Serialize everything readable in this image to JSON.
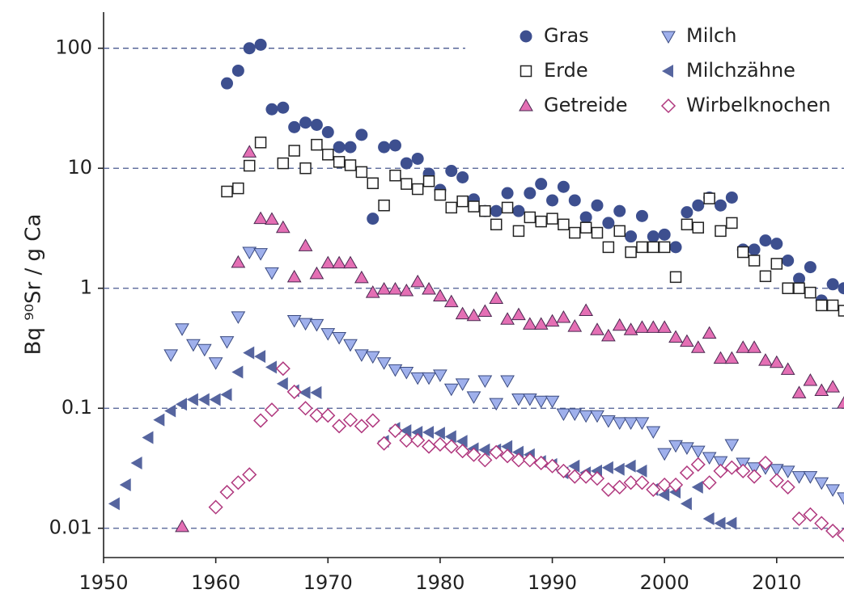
{
  "chart_data": {
    "type": "scatter",
    "ylabel": "Bq ⁹⁰Sr / g Ca",
    "log_y": true,
    "grid": true,
    "legend": "upper right",
    "xlim": [
      1950,
      2016
    ],
    "xticks": [
      1950,
      1960,
      1970,
      1980,
      1990,
      2000,
      2010
    ],
    "ylim": [
      0.0057,
      200
    ],
    "yticks": [
      100,
      10,
      1,
      0.1,
      0.01
    ],
    "series": [
      {
        "name": "Gras",
        "marker": "circle",
        "color": "#3d4f8f",
        "filled": true,
        "x": [
          1961,
          1962,
          1963,
          1964,
          1965,
          1966,
          1967,
          1968,
          1969,
          1970,
          1971,
          1972,
          1973,
          1974,
          1975,
          1976,
          1977,
          1978,
          1979,
          1980,
          1981,
          1982,
          1983,
          1984,
          1985,
          1986,
          1987,
          1988,
          1989,
          1990,
          1991,
          1992,
          1993,
          1994,
          1995,
          1996,
          1997,
          1998,
          1999,
          2000,
          2001,
          2002,
          2003,
          2004,
          2005,
          2006,
          2007,
          2008,
          2009,
          2010,
          2011,
          2012,
          2013,
          2014,
          2015,
          2016
        ],
        "values": [
          51,
          65,
          100,
          107,
          31,
          32,
          22,
          24,
          23,
          20,
          15,
          15,
          19,
          3.8,
          15,
          15.5,
          11,
          12,
          9,
          6.6,
          9.5,
          8.4,
          5.5,
          4.4,
          4.4,
          6.2,
          4.4,
          6.2,
          7.4,
          5.4,
          7,
          5.4,
          3.9,
          4.9,
          3.5,
          4.4,
          2.7,
          4,
          2.7,
          2.8,
          2.2,
          4.3,
          4.9,
          5.7,
          4.9,
          5.7,
          2.1,
          2.1,
          2.5,
          2.35,
          1.7,
          1.2,
          1.5,
          0.79,
          1.08,
          1.0
        ]
      },
      {
        "name": "Erde",
        "marker": "square",
        "color": "#222222",
        "filled": false,
        "x": [
          1961,
          1962,
          1963,
          1964,
          1966,
          1967,
          1968,
          1969,
          1970,
          1971,
          1972,
          1973,
          1974,
          1975,
          1976,
          1977,
          1978,
          1979,
          1980,
          1981,
          1982,
          1983,
          1984,
          1985,
          1986,
          1987,
          1988,
          1989,
          1990,
          1991,
          1992,
          1993,
          1994,
          1995,
          1996,
          1997,
          1998,
          1999,
          2000,
          2001,
          2002,
          2003,
          2004,
          2005,
          2006,
          2007,
          2008,
          2009,
          2010,
          2011,
          2012,
          2013,
          2014,
          2015,
          2016
        ],
        "values": [
          6.4,
          6.8,
          10.5,
          16.4,
          11,
          14,
          10,
          15.7,
          13,
          11.3,
          10.6,
          9.3,
          7.5,
          4.9,
          8.7,
          7.4,
          6.7,
          7.8,
          6,
          4.7,
          5.3,
          4.8,
          4.4,
          3.4,
          4.7,
          3.0,
          3.9,
          3.6,
          3.8,
          3.4,
          2.9,
          3.2,
          2.9,
          2.2,
          3.0,
          2.0,
          2.2,
          2.2,
          2.2,
          1.24,
          3.4,
          3.2,
          5.6,
          3.0,
          3.5,
          2.0,
          1.7,
          1.26,
          1.6,
          1.0,
          1.0,
          0.92,
          0.72,
          0.72,
          0.65
        ]
      },
      {
        "name": "Getreide",
        "marker": "triangle-up",
        "color": "#e46fb4",
        "filled": true,
        "x": [
          1957,
          1962,
          1963,
          1964,
          1965,
          1966,
          1967,
          1968,
          1969,
          1970,
          1971,
          1972,
          1973,
          1974,
          1975,
          1976,
          1977,
          1978,
          1979,
          1980,
          1981,
          1982,
          1983,
          1984,
          1985,
          1986,
          1987,
          1988,
          1989,
          1990,
          1991,
          1992,
          1993,
          1994,
          1995,
          1996,
          1997,
          1998,
          1999,
          2000,
          2001,
          2002,
          2003,
          2004,
          2005,
          2006,
          2007,
          2008,
          2009,
          2010,
          2011,
          2012,
          2013,
          2014,
          2015,
          2016
        ],
        "values": [
          0.0103,
          1.64,
          13.6,
          3.8,
          3.75,
          3.2,
          1.24,
          2.25,
          1.32,
          1.62,
          1.62,
          1.62,
          1.22,
          0.92,
          0.98,
          0.98,
          0.95,
          1.13,
          0.98,
          0.86,
          0.77,
          0.61,
          0.59,
          0.64,
          0.82,
          0.55,
          0.6,
          0.5,
          0.5,
          0.53,
          0.57,
          0.48,
          0.65,
          0.45,
          0.4,
          0.49,
          0.45,
          0.47,
          0.47,
          0.47,
          0.39,
          0.36,
          0.32,
          0.42,
          0.26,
          0.26,
          0.32,
          0.32,
          0.25,
          0.24,
          0.21,
          0.134,
          0.17,
          0.14,
          0.15,
          0.11
        ]
      },
      {
        "name": "Milch",
        "marker": "triangle-down",
        "color": "#9fb0ec",
        "filled": true,
        "x": [
          1956,
          1957,
          1958,
          1959,
          1960,
          1961,
          1962,
          1963,
          1964,
          1965,
          1967,
          1968,
          1969,
          1970,
          1971,
          1972,
          1973,
          1974,
          1975,
          1976,
          1977,
          1978,
          1979,
          1980,
          1981,
          1982,
          1983,
          1984,
          1985,
          1986,
          1987,
          1988,
          1989,
          1990,
          1991,
          1992,
          1993,
          1994,
          1995,
          1996,
          1997,
          1998,
          1999,
          2000,
          2001,
          2002,
          2003,
          2004,
          2005,
          2006,
          2007,
          2008,
          2009,
          2010,
          2011,
          2012,
          2013,
          2014,
          2015,
          2016
        ],
        "values": [
          0.28,
          0.46,
          0.34,
          0.31,
          0.24,
          0.36,
          0.58,
          2.0,
          1.95,
          1.35,
          0.54,
          0.51,
          0.5,
          0.42,
          0.39,
          0.34,
          0.28,
          0.27,
          0.24,
          0.21,
          0.2,
          0.18,
          0.18,
          0.19,
          0.145,
          0.16,
          0.125,
          0.17,
          0.11,
          0.17,
          0.12,
          0.12,
          0.115,
          0.115,
          0.09,
          0.09,
          0.087,
          0.087,
          0.079,
          0.076,
          0.076,
          0.076,
          0.064,
          0.042,
          0.049,
          0.047,
          0.044,
          0.039,
          0.036,
          0.05,
          0.035,
          0.032,
          0.032,
          0.031,
          0.03,
          0.027,
          0.027,
          0.024,
          0.021,
          0.018
        ]
      },
      {
        "name": "Milchzähne",
        "marker": "triangle-left",
        "color": "#56659f",
        "filled": true,
        "x": [
          1951,
          1952,
          1953,
          1954,
          1955,
          1956,
          1957,
          1958,
          1959,
          1960,
          1961,
          1962,
          1963,
          1964,
          1965,
          1966,
          1967,
          1968,
          1969,
          1975,
          1976,
          1977,
          1978,
          1979,
          1980,
          1981,
          1982,
          1983,
          1984,
          1985,
          1986,
          1987,
          1988,
          1989,
          1990,
          1991,
          1992,
          1993,
          1994,
          1995,
          1996,
          1997,
          1998,
          1999,
          2000,
          2001,
          2002,
          2003,
          2004,
          2005,
          2006
        ],
        "values": [
          0.016,
          0.023,
          0.035,
          0.057,
          0.08,
          0.095,
          0.108,
          0.118,
          0.118,
          0.118,
          0.13,
          0.2,
          0.29,
          0.27,
          0.22,
          0.16,
          0.14,
          0.135,
          0.135,
          0.053,
          0.068,
          0.065,
          0.063,
          0.063,
          0.062,
          0.058,
          0.053,
          0.046,
          0.045,
          0.045,
          0.048,
          0.043,
          0.041,
          0.036,
          0.034,
          0.029,
          0.033,
          0.029,
          0.03,
          0.032,
          0.031,
          0.033,
          0.03,
          0.021,
          0.019,
          0.02,
          0.016,
          0.022,
          0.012,
          0.011,
          0.011
        ]
      },
      {
        "name": "Wirbelknochen",
        "marker": "diamond",
        "color": "#b0387e",
        "filled": false,
        "x": [
          1960,
          1961,
          1962,
          1963,
          1964,
          1965,
          1966,
          1967,
          1968,
          1969,
          1970,
          1971,
          1972,
          1973,
          1974,
          1975,
          1976,
          1977,
          1978,
          1979,
          1980,
          1981,
          1982,
          1983,
          1984,
          1985,
          1986,
          1987,
          1988,
          1989,
          1990,
          1991,
          1992,
          1993,
          1994,
          1995,
          1996,
          1997,
          1998,
          1999,
          2000,
          2001,
          2002,
          2003,
          2004,
          2005,
          2006,
          2007,
          2008,
          2009,
          2010,
          2011,
          2012,
          2013,
          2014,
          2015,
          2016
        ],
        "values": [
          0.015,
          0.02,
          0.024,
          0.028,
          0.079,
          0.097,
          0.214,
          0.137,
          0.1,
          0.087,
          0.087,
          0.071,
          0.08,
          0.071,
          0.079,
          0.051,
          0.065,
          0.054,
          0.054,
          0.048,
          0.05,
          0.048,
          0.044,
          0.041,
          0.037,
          0.043,
          0.04,
          0.037,
          0.037,
          0.035,
          0.033,
          0.03,
          0.027,
          0.027,
          0.026,
          0.021,
          0.022,
          0.024,
          0.024,
          0.021,
          0.023,
          0.023,
          0.029,
          0.034,
          0.024,
          0.03,
          0.032,
          0.03,
          0.027,
          0.035,
          0.025,
          0.022,
          0.012,
          0.013,
          0.011,
          0.0095,
          0.0088
        ]
      }
    ]
  }
}
